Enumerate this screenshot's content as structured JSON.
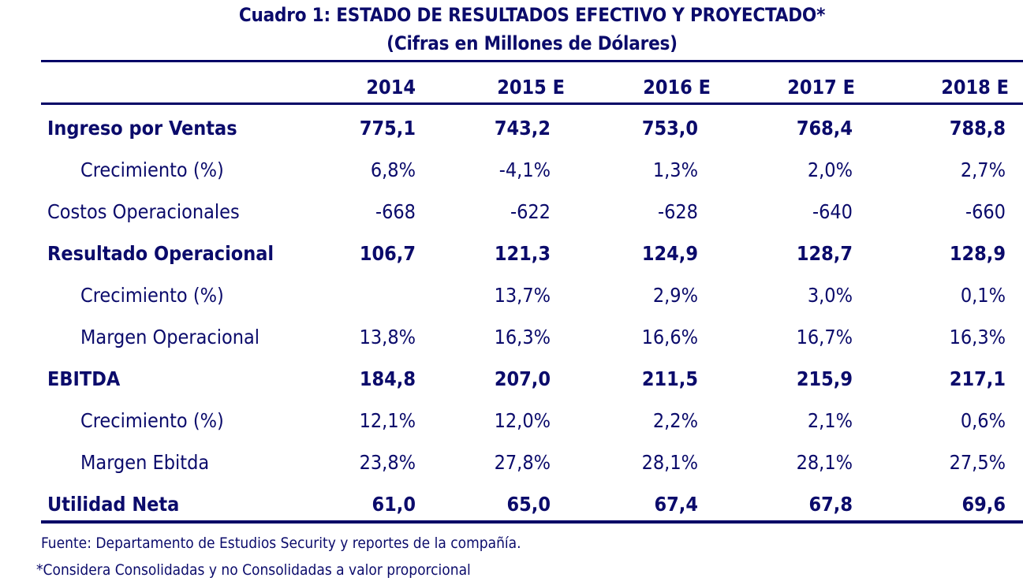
{
  "title": {
    "line1": "Cuadro 1: ESTADO DE RESULTADOS EFECTIVO Y PROYECTADO*",
    "line2": "(Cifras en Millones de Dólares)"
  },
  "table": {
    "columns": [
      "2014",
      "2015 E",
      "2016 E",
      "2017 E",
      "2018 E"
    ],
    "rows": [
      {
        "label": "Ingreso por Ventas",
        "style": "bold",
        "indent": false,
        "values": [
          "775,1",
          "743,2",
          "753,0",
          "768,4",
          "788,8"
        ]
      },
      {
        "label": "Crecimiento (%)",
        "style": "normal",
        "indent": true,
        "values": [
          "6,8%",
          "-4,1%",
          "1,3%",
          "2,0%",
          "2,7%"
        ]
      },
      {
        "label": "Costos Operacionales",
        "style": "normal",
        "indent": false,
        "values": [
          "-668",
          "-622",
          "-628",
          "-640",
          "-660"
        ]
      },
      {
        "label": "Resultado Operacional",
        "style": "bold",
        "indent": false,
        "values": [
          "106,7",
          "121,3",
          "124,9",
          "128,7",
          "128,9"
        ]
      },
      {
        "label": "Crecimiento (%)",
        "style": "normal",
        "indent": true,
        "values": [
          "",
          "13,7%",
          "2,9%",
          "3,0%",
          "0,1%"
        ]
      },
      {
        "label": "Margen Operacional",
        "style": "normal",
        "indent": true,
        "values": [
          "13,8%",
          "16,3%",
          "16,6%",
          "16,7%",
          "16,3%"
        ]
      },
      {
        "label": "EBITDA",
        "style": "bold",
        "indent": false,
        "values": [
          "184,8",
          "207,0",
          "211,5",
          "215,9",
          "217,1"
        ]
      },
      {
        "label": "Crecimiento (%)",
        "style": "normal",
        "indent": true,
        "values": [
          "12,1%",
          "12,0%",
          "2,2%",
          "2,1%",
          "0,6%"
        ]
      },
      {
        "label": "Margen Ebitda",
        "style": "normal",
        "indent": true,
        "values": [
          "23,8%",
          "27,8%",
          "28,1%",
          "28,1%",
          "27,5%"
        ]
      },
      {
        "label": "Utilidad Neta",
        "style": "bold",
        "indent": false,
        "values": [
          "61,0",
          "65,0",
          "67,4",
          "67,8",
          "69,6"
        ]
      }
    ]
  },
  "notes": {
    "source": "Fuente: Departamento de Estudios Security y reportes de la compañía.",
    "footnote": "*Considera Consolidadas y no Consolidadas a valor proporcional"
  },
  "colors": {
    "text": "#0b0b6b",
    "rule": "#000066"
  }
}
